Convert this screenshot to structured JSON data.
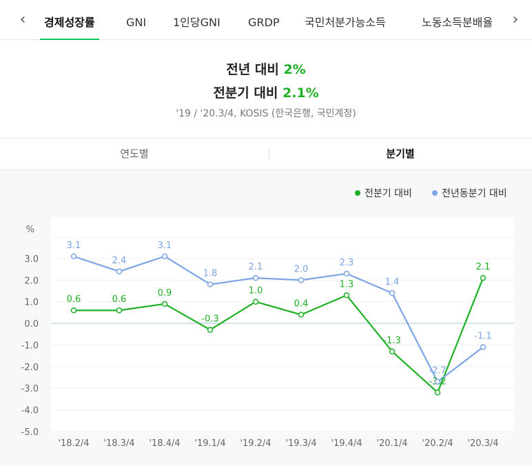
{
  "tabs": [
    "경제성장률",
    "GNI",
    "1인당GNI",
    "GRDP",
    "국민처분가능소득",
    "노동소득분배율"
  ],
  "nav": {
    "prev": "‹",
    "next": "›"
  },
  "summary": {
    "line1_label": "전년 대비",
    "line1_value": "2%",
    "line2_label": "전분기 대비",
    "line2_value": "2.1%",
    "source": "'19 / '20.3/4, KOSIS (한국은행, 국민계정)"
  },
  "subtabs": {
    "yearly": "연도별",
    "quarterly": "분기별"
  },
  "colors": {
    "accent": "#03c75a",
    "green": "#1db023",
    "blue": "#7ba4e6"
  },
  "chart_data": {
    "type": "line",
    "ylabel": "%",
    "ylim": [
      -5.0,
      3.0
    ],
    "yticks": [
      "3.0",
      "2.0",
      "1.0",
      "0.0",
      "-1.0",
      "-2.0",
      "-3.0",
      "-4.0",
      "-5.0"
    ],
    "categories": [
      "'18.2/4",
      "'18.3/4",
      "'18.4/4",
      "'19.1/4",
      "'19.2/4",
      "'19.3/4",
      "'19.4/4",
      "'20.1/4",
      "'20.2/4",
      "'20.3/4"
    ],
    "legend_position": "top-right",
    "series": [
      {
        "name": "전분기 대비",
        "color": "#1db023",
        "values": [
          0.6,
          0.6,
          0.9,
          -0.3,
          1.0,
          0.4,
          1.3,
          -1.3,
          -3.2,
          2.1
        ],
        "labels": [
          "0.6",
          "0.6",
          "0.9",
          "-0.3",
          "1.0",
          "0.4",
          "1.3",
          "-1.3",
          "-3.2",
          "2.1"
        ]
      },
      {
        "name": "전년동분기 대비",
        "color": "#7ba4e6",
        "values": [
          3.1,
          2.4,
          3.1,
          1.8,
          2.1,
          2.0,
          2.3,
          1.4,
          -2.7,
          -1.1
        ],
        "labels": [
          "3.1",
          "2.4",
          "3.1",
          "1.8",
          "2.1",
          "2.0",
          "2.3",
          "1.4",
          "-2.7",
          "-1.1"
        ]
      }
    ]
  }
}
